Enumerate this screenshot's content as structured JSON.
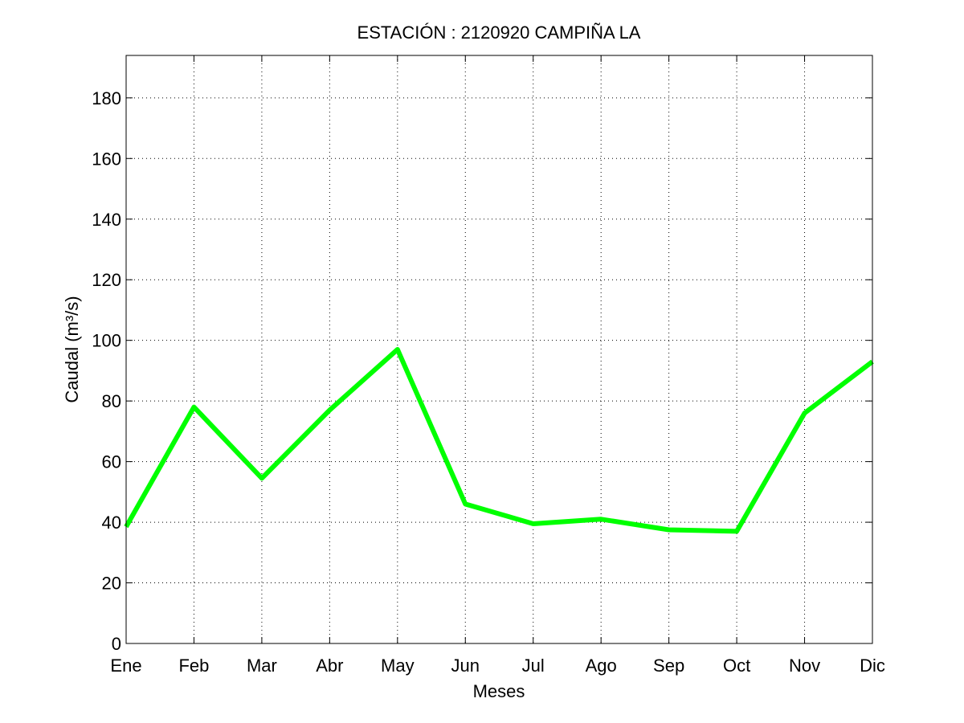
{
  "chart_data": {
    "type": "line",
    "title": "ESTACIÓN :  2120920  CAMPIÑA LA",
    "xlabel": "Meses",
    "ylabel": "Caudal (m³/s)",
    "categories": [
      "Ene",
      "Feb",
      "Mar",
      "Abr",
      "May",
      "Jun",
      "Jul",
      "Ago",
      "Sep",
      "Oct",
      "Nov",
      "Dic"
    ],
    "yticks": [
      "0",
      "20",
      "40",
      "60",
      "80",
      "100",
      "120",
      "140",
      "160",
      "180"
    ],
    "ylim": [
      0,
      194
    ],
    "grid": true,
    "series": [
      {
        "color": "#00ff00",
        "values": [
          38.5,
          78,
          54.5,
          77,
          97,
          46,
          39.5,
          41,
          37.5,
          37,
          76,
          93
        ]
      }
    ]
  }
}
